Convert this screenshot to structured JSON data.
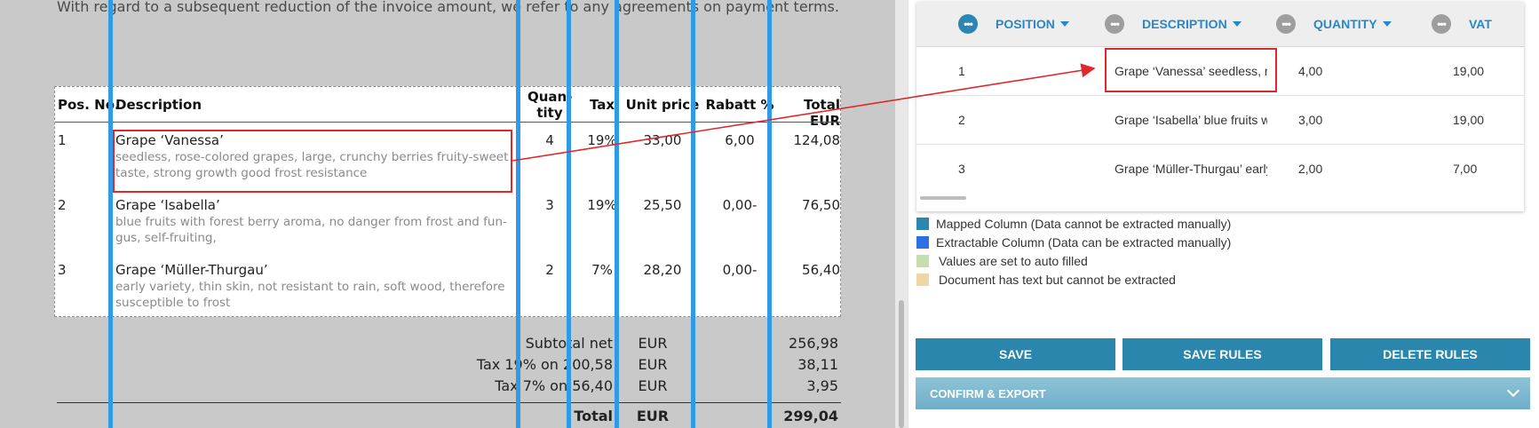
{
  "document": {
    "intro_text": "With regard to a subsequent reduction of the invoice amount, we refer to any agreements on payment terms.",
    "headers": {
      "pos": "Pos. No.",
      "description": "Description",
      "quantity_line1": "Quan-",
      "quantity_line2": "tity",
      "tax": "Tax",
      "unit_price": "Unit price",
      "rabatt": "Rabatt %",
      "total": "Total EUR"
    },
    "rows": [
      {
        "pos": "1",
        "title": "Grape ‘Vanessa’",
        "sub1": "seedless, rose-colored grapes, large, crunchy berries fruity-sweet",
        "sub2": "taste, strong growth good frost resistance",
        "qty": "4",
        "tax": "19%",
        "unit": "33,00",
        "rabatt": "6,00",
        "total": "124,08"
      },
      {
        "pos": "2",
        "title": "Grape ‘Isabella’",
        "sub1": "blue fruits with forest berry aroma, no danger from frost and fun-",
        "sub2": "gus, self-fruiting,",
        "qty": "3",
        "tax": "19%",
        "unit": "25,50",
        "rabatt": "0,00-",
        "total": "76,50"
      },
      {
        "pos": "3",
        "title": "Grape ‘Müller-Thurgau’",
        "sub1": "early variety, thin skin, not resistant to rain, soft wood, therefore",
        "sub2": "susceptible to frost",
        "qty": "2",
        "tax": "7%",
        "unit": "28,20",
        "rabatt": "0,00-",
        "total": "56,40"
      }
    ],
    "summary": {
      "subtotal_label": "Subtotal net",
      "subtotal_cur": "EUR",
      "subtotal_val": "256,98",
      "tax19_label": "Tax 19% on 200,58",
      "tax19_cur": "EUR",
      "tax19_val": "38,11",
      "tax7_label": "Tax 7% on 56,40",
      "tax7_cur": "EUR",
      "tax7_val": "3,95",
      "total_label": "Total",
      "total_cur": "EUR",
      "total_val": "299,04"
    }
  },
  "grid": {
    "columns": [
      {
        "label": "POSITION"
      },
      {
        "label": "DESCRIPTION"
      },
      {
        "label": "QUANTITY"
      },
      {
        "label": "VAT"
      }
    ],
    "rows": [
      {
        "position": "1",
        "description": "Grape ‘Vanessa’ seedless, rose-colored grapes",
        "quantity": "4,00",
        "vat": "19,00"
      },
      {
        "position": "2",
        "description": "Grape ‘Isabella’ blue fruits with forest berry aroma",
        "quantity": "3,00",
        "vat": "19,00"
      },
      {
        "position": "3",
        "description": "Grape ‘Müller-Thurgau’ early variety",
        "quantity": "2,00",
        "vat": "7,00"
      }
    ]
  },
  "legend": [
    {
      "label": "Mapped Column (Data cannot be extracted manually)",
      "color": "#2a87b0"
    },
    {
      "label": "Extractable Column (Data can be extracted manually)",
      "color": "#2f6fe6"
    },
    {
      "label": "Values are set to auto filled",
      "color": "#c5ddb0"
    },
    {
      "label": "Document has text but cannot be extracted",
      "color": "#efd6a6"
    }
  ],
  "buttons": {
    "save": "SAVE",
    "save_rules": "SAVE RULES",
    "delete_rules": "DELETE RULES"
  },
  "confirm_export": "CONFIRM & EXPORT",
  "colors": {
    "accent": "#2a86ad",
    "column_line": "#2f9be8",
    "highlight": "#e0282a"
  }
}
